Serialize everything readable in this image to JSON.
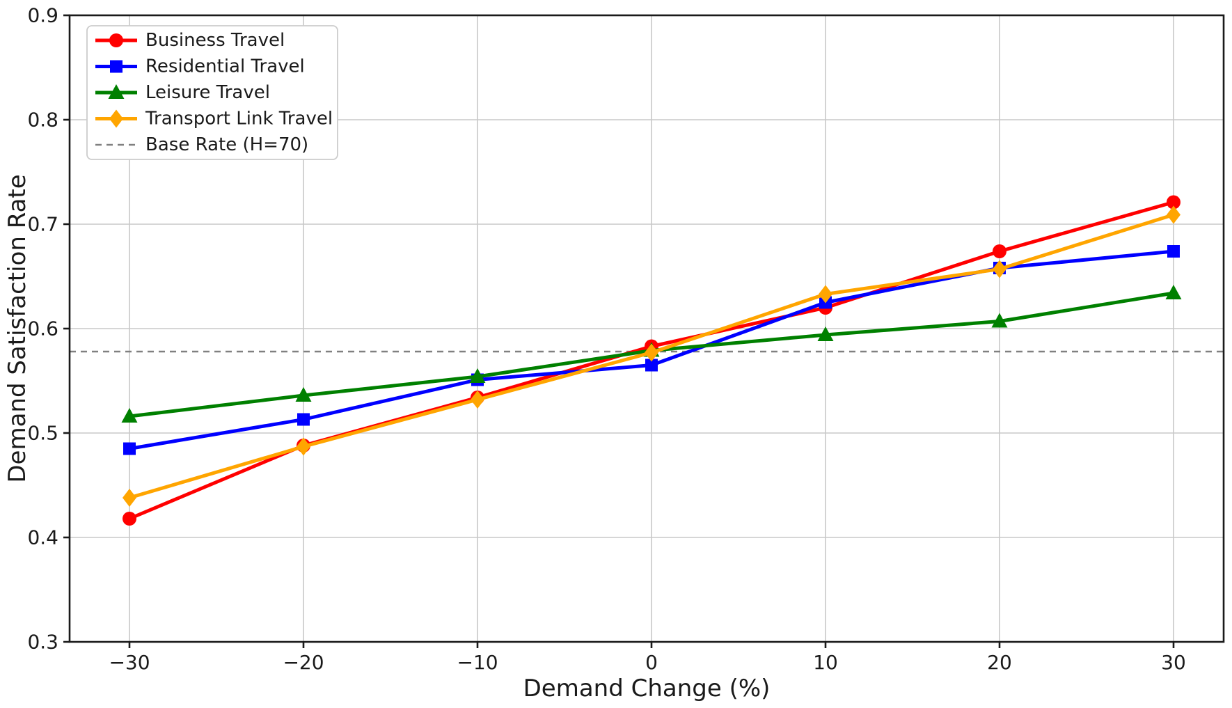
{
  "chart_data": {
    "type": "line",
    "xlabel": "Demand Change (%)",
    "ylabel": "Demand Satisfaction Rate",
    "x": [
      -30,
      -20,
      -10,
      0,
      10,
      20,
      30
    ],
    "x_tick_labels": [
      "−30",
      "−20",
      "−10",
      "0",
      "10",
      "20",
      "30"
    ],
    "y_ticks": [
      0.3,
      0.4,
      0.5,
      0.6,
      0.7,
      0.8,
      0.9
    ],
    "y_tick_labels": [
      "0.3",
      "0.4",
      "0.5",
      "0.6",
      "0.7",
      "0.8",
      "0.9"
    ],
    "xlim": [
      -33.44,
      32.88
    ],
    "ylim": [
      0.3,
      0.9
    ],
    "grid": true,
    "legend_position": "upper-left",
    "series": [
      {
        "name": "Business Travel",
        "color": "#ff0000",
        "marker": "circle",
        "values": [
          0.418,
          0.488,
          0.534,
          0.583,
          0.62,
          0.674,
          0.721
        ]
      },
      {
        "name": "Residential Travel",
        "color": "#0000ff",
        "marker": "square",
        "values": [
          0.485,
          0.513,
          0.551,
          0.565,
          0.625,
          0.658,
          0.674
        ]
      },
      {
        "name": "Leisure Travel",
        "color": "#008000",
        "marker": "triangle",
        "values": [
          0.516,
          0.536,
          0.554,
          0.579,
          0.594,
          0.607,
          0.634
        ]
      },
      {
        "name": "Transport Link Travel",
        "color": "#ffa500",
        "marker": "diamond",
        "values": [
          0.438,
          0.487,
          0.532,
          0.577,
          0.633,
          0.657,
          0.709
        ]
      }
    ],
    "baseline": {
      "label": "Base Rate (H=70)",
      "value": 0.578,
      "color": "#808080",
      "style": "dashed"
    },
    "colors": {
      "grid": "#c8c8c8",
      "spine": "#1a1a1a",
      "legend_border": "#cccccc",
      "text": "#1a1a1a"
    }
  }
}
